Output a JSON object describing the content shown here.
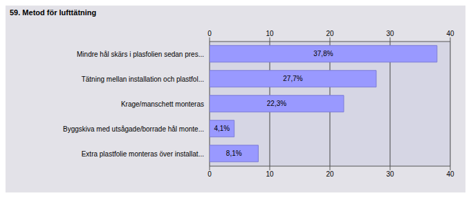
{
  "chart_data": {
    "type": "bar",
    "title": "59. Metod för lufttätning",
    "orientation": "horizontal",
    "categories": [
      "Mindre hål skärs i plasfolien sedan pres...",
      "Tätning mellan installation och plastfol...",
      "Krage/manschett monteras",
      "Byggskiva med utsågade/borrade hål monte...",
      "Extra plastfolie monteras över installat..."
    ],
    "values": [
      37.8,
      27.7,
      22.3,
      4.1,
      8.1
    ],
    "value_labels": [
      "37,8%",
      "27,7%",
      "22,3%",
      "4,1%",
      "8,1%"
    ],
    "data_labels": true,
    "color": "#9999ff",
    "xlim": [
      0,
      40
    ],
    "xticks": [
      0,
      10,
      20,
      30,
      40
    ],
    "grid": true
  }
}
